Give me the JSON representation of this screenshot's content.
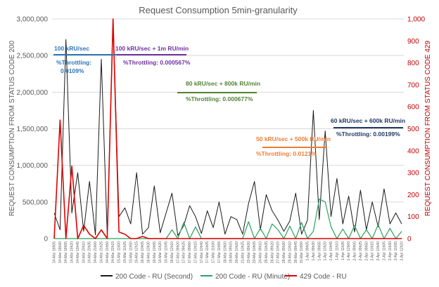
{
  "chart_data": {
    "type": "line",
    "title": "Request Consumption  5min-granularity",
    "ylabel_left": "REQUEST CONSUMPTION FROM STATUS CODE 200",
    "ylabel_right": "REQUEST CONSUMPTION FROM STATUS CODE 429",
    "ylim_left": [
      0,
      3000000
    ],
    "ylim_right": [
      0,
      1000
    ],
    "yticks_left": [
      "0",
      "500,000",
      "1,000,000",
      "1,500,000",
      "2,000,000",
      "2,500,000",
      "3,000,000"
    ],
    "yticks_right": [
      "0",
      "100",
      "200",
      "300",
      "400",
      "500",
      "600",
      "700",
      "800",
      "900",
      "1,000"
    ],
    "grid": true,
    "legend_position": "bottom",
    "colors": {
      "second": "#1a1a1a",
      "minute": "#2ca25f",
      "code429": "#e00000",
      "blue": "#2e75b6",
      "purple": "#7030a0",
      "green": "#548235",
      "orange": "#ed7d31",
      "navy": "#203864",
      "axis_right": "#c00000"
    },
    "x_labels": [
      "14-Mar 18h05",
      "14-Mar 18h30",
      "14-Mar 18h55",
      "14-Mar 19h20",
      "14-Mar 19h45",
      "14-Mar 20h10",
      "14-Mar 20h35",
      "14-Mar 21h00",
      "14-Mar 21h25",
      "14-Mar 21h50",
      "14-Mar 22h15",
      "15-Mar 11h00",
      "15-Mar 11h25",
      "15-Mar 11h50",
      "15-Mar 12h15",
      "16-Mar 10h05",
      "16-Mar 10h30",
      "16-Mar 10h55",
      "16-Mar 11h20",
      "16-Mar 11h45",
      "16-Mar 12h10",
      "17-Mar 09h00",
      "17-Mar 09h25",
      "17-Mar 09h50",
      "17-Mar 10h15",
      "17-Mar 10h40",
      "17-Mar 11h05",
      "17-Mar 11h30",
      "17-Mar 11h55",
      "18-Mar 10h00",
      "19-Mar 09h15",
      "20-Mar 10h20",
      "21-Mar 10h25",
      "22-Mar 09h30",
      "23-Mar 10h05",
      "24-Mar 09h10",
      "25-Mar 10h35",
      "26-Mar 09h20",
      "27-Mar 10h15",
      "28-Mar 09h30",
      "29-Mar 10h10",
      "30-Mar 09h45",
      "31-Mar 10h50",
      "1-Apr 09h05",
      "1-Apr 09h30",
      "1-Apr 09h55",
      "1-Apr 10h20",
      "1-Apr 10h45",
      "1-Apr 11h10",
      "1-Apr 11h35",
      "1-Apr 12h00",
      "2-Apr 09h00",
      "2-Apr 09h25",
      "2-Apr 09h50",
      "2-Apr 10h15",
      "2-Apr 10h40",
      "2-Apr 11h05",
      "2-Apr 11h30",
      "2-Apr 11h55",
      "2-Apr 12h20"
    ],
    "series": [
      {
        "name": "200 Code - RU (Second)",
        "axis": "left",
        "values": [
          350000,
          120000,
          2720000,
          350000,
          900000,
          100000,
          780000,
          50000,
          2450000,
          60000,
          3000000,
          300000,
          420000,
          200000,
          900000,
          60000,
          150000,
          720000,
          80000,
          350000,
          620000,
          40000,
          180000,
          450000,
          300000,
          70000,
          380000,
          150000,
          500000,
          60000,
          300000,
          260000,
          60000,
          480000,
          780000,
          120000,
          600000,
          380000,
          250000,
          100000,
          240000,
          620000,
          60000,
          250000,
          1750000,
          260000,
          1470000,
          300000,
          820000,
          200000,
          580000,
          90000,
          660000,
          120000,
          500000,
          160000,
          680000,
          200000,
          350000,
          200000
        ]
      },
      {
        "name": "200 Code - RU (Minute)",
        "axis": "left",
        "values": [
          0,
          0,
          0,
          0,
          0,
          0,
          0,
          0,
          0,
          0,
          0,
          0,
          0,
          0,
          0,
          0,
          0,
          0,
          0,
          0,
          120000,
          0,
          220000,
          0,
          160000,
          0,
          0,
          0,
          0,
          0,
          0,
          0,
          0,
          230000,
          0,
          140000,
          0,
          200000,
          120000,
          0,
          170000,
          0,
          220000,
          0,
          100000,
          540000,
          500000,
          160000,
          0,
          130000,
          0,
          180000,
          0,
          120000,
          0,
          190000,
          0,
          140000,
          0,
          100000
        ]
      },
      {
        "name": "429 Code - RU",
        "axis": "right",
        "values": [
          0,
          540,
          0,
          330,
          0,
          60,
          20,
          0,
          40,
          0,
          1000,
          30,
          20,
          0,
          0,
          10,
          0,
          0,
          0,
          0,
          0,
          0,
          0,
          0,
          0,
          0,
          0,
          0,
          0,
          0,
          0,
          0,
          0,
          0,
          0,
          0,
          0,
          0,
          0,
          0,
          0,
          0,
          0,
          0,
          0,
          0,
          0,
          0,
          0,
          0,
          0,
          0,
          0,
          0,
          0,
          0,
          0,
          0,
          0,
          0
        ]
      }
    ],
    "annotations": [
      {
        "label": "100 kRU/sec",
        "note": "%Throttling: 0.0109%",
        "color": "blue"
      },
      {
        "label": "100 kRU/sec + 1m RU/min",
        "note": "%Throttling: 0.000567%",
        "color": "purple"
      },
      {
        "label": "80 kRU/sec + 800k RU/min",
        "note": "%Throttling: 0.000677%",
        "color": "green"
      },
      {
        "label": "50 kRU/sec + 500k RU/min",
        "note": "%Throttling: 0.0121%",
        "color": "orange"
      },
      {
        "label": "60 kRU/sec + 600k RU/min",
        "note": "%Throttling: 0.00199%",
        "color": "navy"
      }
    ]
  }
}
